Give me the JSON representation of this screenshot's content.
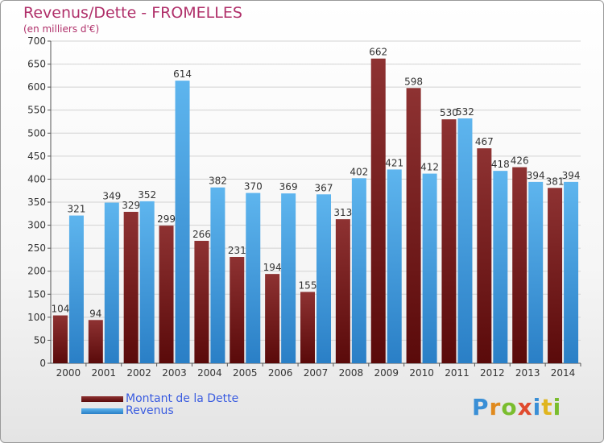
{
  "title": "Revenus/Dette - FROMELLES",
  "subtitle": "(en milliers d'€)",
  "logo_text": "Proxiti",
  "colors": {
    "dette": "#6e1a1a",
    "revenus": "#3d9be0",
    "title": "#b0306a",
    "legend_text": "#3a5ce0"
  },
  "chart_data": {
    "type": "bar",
    "title": "Revenus/Dette - FROMELLES",
    "subtitle": "(en milliers d'€)",
    "categories": [
      "2000",
      "2001",
      "2002",
      "2003",
      "2004",
      "2005",
      "2006",
      "2007",
      "2008",
      "2009",
      "2010",
      "2011",
      "2012",
      "2013",
      "2014"
    ],
    "series": [
      {
        "name": "Montant de la Dette",
        "color": "#6e1a1a",
        "values": [
          104,
          94,
          329,
          299,
          266,
          231,
          194,
          155,
          313,
          662,
          598,
          530,
          467,
          426,
          381
        ]
      },
      {
        "name": "Revenus",
        "color": "#3d9be0",
        "values": [
          321,
          349,
          352,
          614,
          382,
          370,
          369,
          367,
          402,
          421,
          412,
          532,
          418,
          394,
          394
        ]
      }
    ],
    "ylim": [
      0,
      700
    ],
    "yticks": [
      0,
      50,
      100,
      150,
      200,
      250,
      300,
      350,
      400,
      450,
      500,
      550,
      600,
      650,
      700
    ],
    "grid": true,
    "legend_position": "bottom-left"
  }
}
